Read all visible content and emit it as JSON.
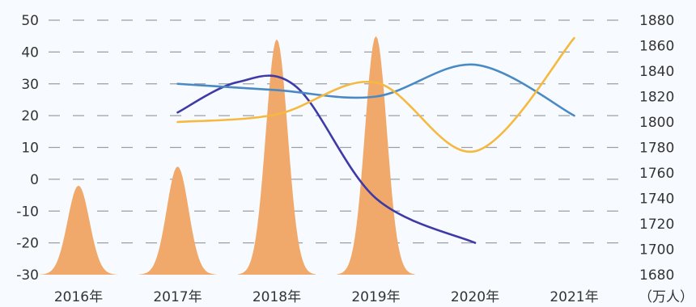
{
  "chart_data": {
    "type": "line",
    "categories": [
      "2016年",
      "2017年",
      "2018年",
      "2019年",
      "2020年",
      "2021年"
    ],
    "unit_right": "（万人）",
    "y_left": {
      "range": [
        -30,
        50
      ],
      "ticks": [
        "50",
        "40",
        "30",
        "20",
        "10",
        "0",
        "-10",
        "-20",
        "-30"
      ]
    },
    "y_right": {
      "range": [
        1680,
        1880
      ],
      "ticks": [
        "1880",
        "1860",
        "1840",
        "1820",
        "1800",
        "1780",
        "1760",
        "1740",
        "1720",
        "1700",
        "1680"
      ]
    },
    "grid": true,
    "peaks": {
      "color": "#f0a96a",
      "axis": "left",
      "values": [
        -2,
        4,
        44,
        45
      ]
    },
    "series": [
      {
        "axis": "left",
        "color": "#3f3aa6",
        "points": [
          [
            1,
            21
          ],
          [
            1.6,
            30.5
          ],
          [
            2.2,
            29
          ],
          [
            3,
            -6
          ],
          [
            4,
            -20
          ]
        ]
      },
      {
        "axis": "left",
        "color": "#4a8ac4",
        "points": [
          [
            1,
            30
          ],
          [
            2,
            28
          ],
          [
            3,
            26
          ],
          [
            4,
            36
          ],
          [
            5,
            20
          ]
        ]
      },
      {
        "axis": "right",
        "color": "#f6b940",
        "points": [
          [
            1,
            1800
          ],
          [
            2,
            1806
          ],
          [
            3,
            1831
          ],
          [
            4,
            1777
          ],
          [
            5,
            1866
          ]
        ]
      }
    ]
  }
}
